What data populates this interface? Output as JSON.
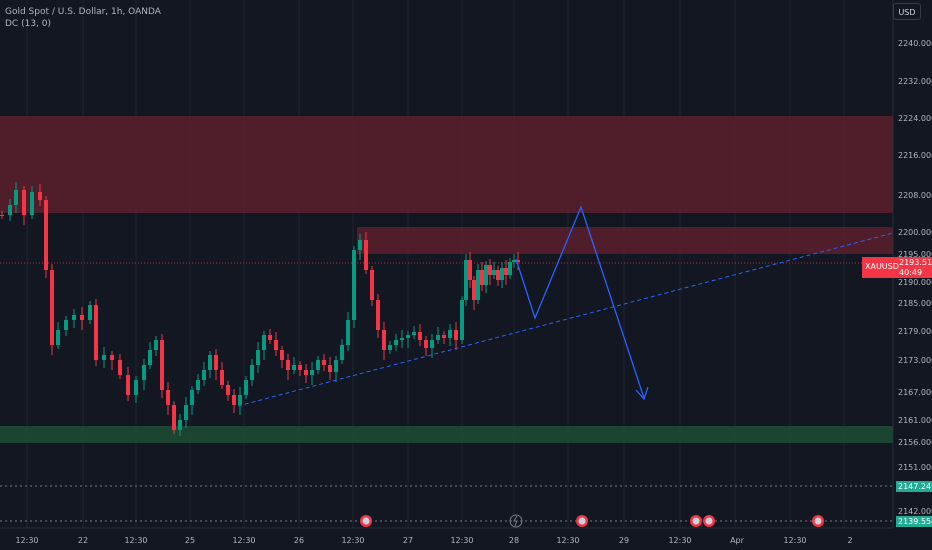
{
  "legend": {
    "title": "Gold Spot / U.S. Dollar, 1h, OANDA",
    "indicator": "DC (13, 0)"
  },
  "currency_button": "USD",
  "price_axis": {
    "ticks": [
      "2240.000",
      "2232.000",
      "2224.000",
      "2216.000",
      "2208.000",
      "2200.000",
      "2195.000",
      "2190.000",
      "2185.000",
      "2179.000",
      "2173.000",
      "2167.000",
      "2161.000",
      "2156.000",
      "2151.000",
      "2142.000"
    ]
  },
  "time_axis": {
    "labels": [
      "12:30",
      "22",
      "12:30",
      "25",
      "12:30",
      "26",
      "12:30",
      "27",
      "12:30",
      "28",
      "12:30",
      "29",
      "12:30",
      "Apr",
      "12:30",
      "2"
    ]
  },
  "current_price_tag": {
    "symbol": "XAUUSD",
    "price": "2193.510",
    "countdown": "40:49"
  },
  "price_labels": {
    "line_upper": "2147.247",
    "line_lower": "2139.554"
  },
  "colors": {
    "background": "#131722",
    "bull": "#089981",
    "bear": "#f23645",
    "zone_red": "#6e2330",
    "zone_green": "#1e4a33",
    "projection": "#2962ff"
  },
  "icons": [
    "event-flag-icon",
    "lightning-icon"
  ]
}
